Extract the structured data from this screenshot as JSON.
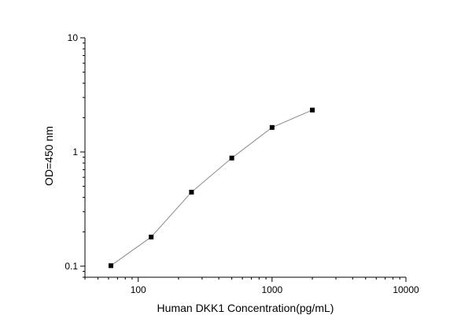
{
  "chart_data": {
    "type": "scatter",
    "xlabel": "Human DKK1 Concentration(pg/mL)",
    "ylabel": "OD=450 nm",
    "x_scale": "log",
    "y_scale": "log",
    "xlim": [
      40,
      10000
    ],
    "ylim": [
      0.08,
      10
    ],
    "x_ticks": [
      {
        "value": 100,
        "label": "100"
      },
      {
        "value": 1000,
        "label": "1000"
      },
      {
        "value": 10000,
        "label": "10000"
      }
    ],
    "y_ticks": [
      {
        "value": 0.1,
        "label": "0.1"
      },
      {
        "value": 1,
        "label": "1"
      },
      {
        "value": 10,
        "label": "10"
      }
    ],
    "series": [
      {
        "x": [
          62.5,
          125,
          250,
          500,
          1000,
          2000
        ],
        "y": [
          0.101,
          0.18,
          0.445,
          0.885,
          1.64,
          2.33
        ],
        "connected": true
      }
    ],
    "grid": false,
    "marker": "square",
    "line_color": "#8c8c8c",
    "marker_color": "#000000"
  }
}
